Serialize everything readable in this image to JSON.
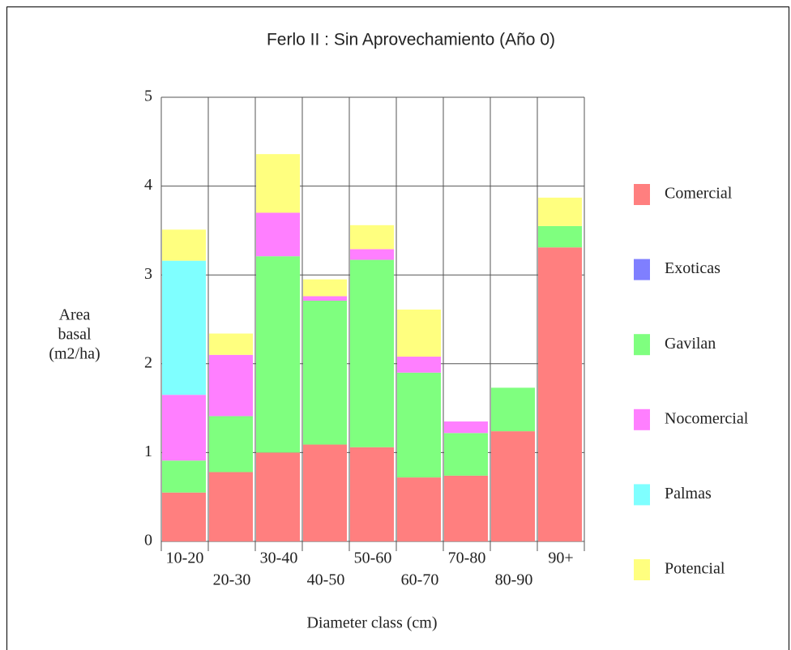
{
  "chart_data": {
    "type": "stacked_bar",
    "title": "Ferlo II : Sin Aprovechamiento (Año 0)",
    "y_label": [
      "Area",
      "basal",
      "(m2/ha)"
    ],
    "x_label": "Diameter class (cm)",
    "categories": [
      "10-20",
      "20-30",
      "30-40",
      "40-50",
      "50-60",
      "60-70",
      "70-80",
      "80-90",
      "90+"
    ],
    "series": [
      {
        "name": "Comercial",
        "color": "#ff7f7f",
        "values": [
          0.55,
          0.78,
          1.0,
          1.09,
          1.06,
          0.72,
          0.74,
          1.24,
          3.31
        ]
      },
      {
        "name": "Exoticas",
        "color": "#7f7fff",
        "values": [
          0,
          0,
          0,
          0,
          0,
          0,
          0,
          0,
          0
        ]
      },
      {
        "name": "Gavilan",
        "color": "#7fff7f",
        "values": [
          0.36,
          0.63,
          2.21,
          1.62,
          2.11,
          1.18,
          0.48,
          0.49,
          0.24
        ]
      },
      {
        "name": "Nocomercial",
        "color": "#ff7fff",
        "values": [
          0.74,
          0.69,
          0.49,
          0.05,
          0.12,
          0.18,
          0.13,
          0,
          0
        ]
      },
      {
        "name": "Palmas",
        "color": "#7fffff",
        "values": [
          1.51,
          0,
          0,
          0,
          0,
          0,
          0,
          0,
          0
        ]
      },
      {
        "name": "Potencial",
        "color": "#ffff7f",
        "values": [
          0.35,
          0.24,
          0.66,
          0.19,
          0.27,
          0.53,
          0,
          0,
          0.32
        ]
      }
    ],
    "ylim": [
      0,
      5
    ],
    "yticks": [
      0,
      1,
      2,
      3,
      4,
      5
    ],
    "grid": true
  }
}
